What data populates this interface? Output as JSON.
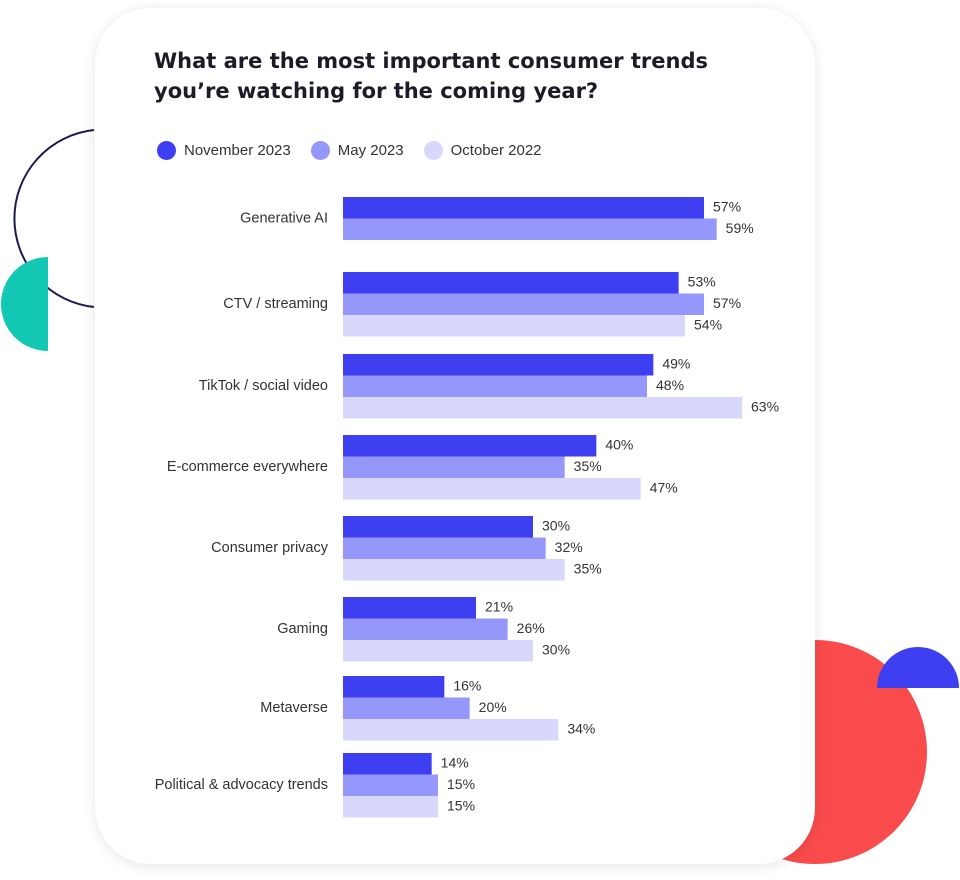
{
  "colors": {
    "november_2023": "#3d3ff0",
    "may_2023": "#9597fb",
    "october_2022": "#d7d8fc",
    "deco_teal": "#12c8b5",
    "deco_red": "#f94b4b",
    "deco_blue": "#3d3ff0",
    "deco_navy": "#1a1a4e"
  },
  "chart_data": {
    "type": "bar",
    "orientation": "horizontal",
    "title": "What are the most important consumer trends you’re watching for the coming year?",
    "categories": [
      "Generative AI",
      "CTV / streaming",
      "TikTok / social video",
      "E-commerce everywhere",
      "Consumer privacy",
      "Gaming",
      "Metaverse",
      "Political & advocacy trends"
    ],
    "series": [
      {
        "name": "November 2023",
        "values": [
          57,
          53,
          49,
          40,
          30,
          21,
          16,
          14
        ]
      },
      {
        "name": "May 2023",
        "values": [
          59,
          57,
          48,
          35,
          32,
          26,
          20,
          15
        ]
      },
      {
        "name": "October 2022",
        "values": [
          null,
          54,
          63,
          47,
          35,
          30,
          34,
          15
        ]
      }
    ],
    "value_suffix": "%",
    "xlim": [
      0,
      63
    ],
    "grid": false,
    "legend_position": "top-left"
  }
}
